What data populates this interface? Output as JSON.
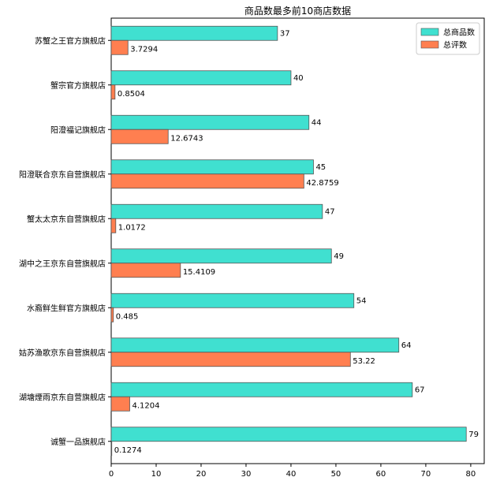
{
  "chart_data": {
    "type": "bar",
    "orientation": "horizontal",
    "title": "商品数最多前10商店数据",
    "xlabel": "",
    "ylabel": "",
    "xlim": [
      0,
      83
    ],
    "xticks": [
      0,
      10,
      20,
      30,
      40,
      50,
      60,
      70,
      80
    ],
    "categories": [
      "苏蟹之王官方旗舰店",
      "蟹宗官方旗舰店",
      "阳澄福记旗舰店",
      "阳澄联合京东自营旗舰店",
      "蟹太太京东自营旗舰店",
      "湖中之王京东自营旗舰店",
      "水裔鲜生鲜官方旗舰店",
      "姑苏渔歌京东自营旗舰店",
      "湖塘煙雨京东自营旗舰店",
      "诚蟹一品旗舰店"
    ],
    "series": [
      {
        "name": "总商品数",
        "color": "#40E0D0",
        "values": [
          37,
          40,
          44,
          45,
          47,
          49,
          54,
          64,
          67,
          79
        ],
        "labels": [
          "37",
          "40",
          "44",
          "45",
          "47",
          "49",
          "54",
          "64",
          "67",
          "79"
        ]
      },
      {
        "name": "总评数",
        "color": "#FF7F50",
        "values": [
          3.7294,
          0.8504,
          12.6743,
          42.8759,
          1.0172,
          15.4109,
          0.485,
          53.22,
          4.1204,
          0.1274
        ],
        "labels": [
          "3.7294",
          "0.8504",
          "12.6743",
          "42.8759",
          "1.0172",
          "15.4109",
          "0.485",
          "53.22",
          "4.1204",
          "0.1274"
        ]
      }
    ],
    "legend": {
      "placement": "top-right",
      "entries": [
        "总商品数",
        "总评数"
      ]
    },
    "grid": false
  }
}
